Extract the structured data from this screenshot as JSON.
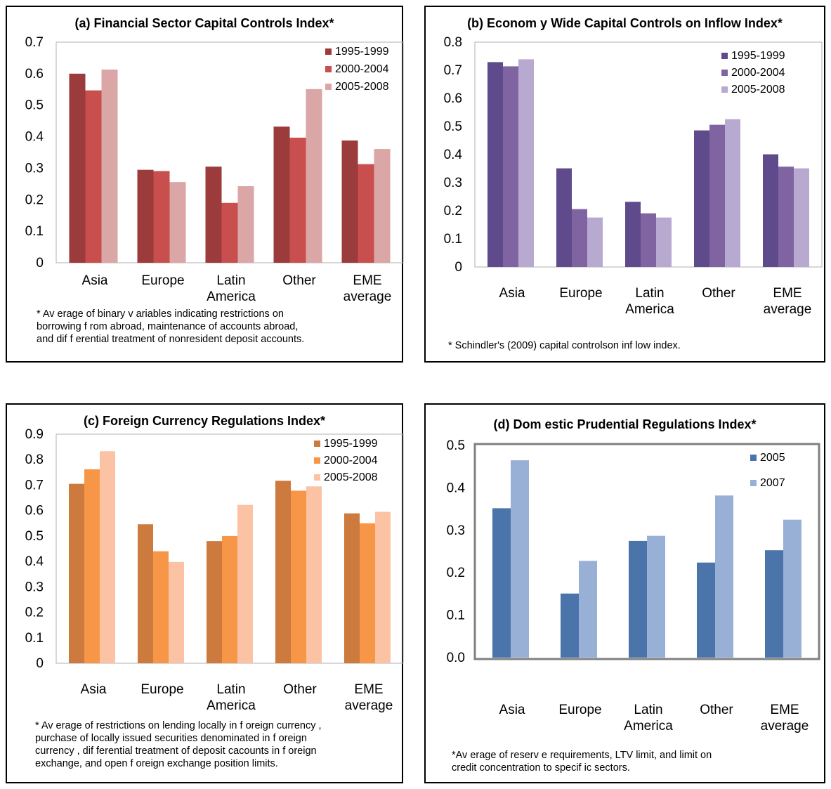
{
  "chart_data": [
    {
      "id": "a",
      "type": "bar",
      "title": "(a) Financial Sector Capital Controls Index*",
      "categories": [
        [
          "Asia"
        ],
        [
          "Europe"
        ],
        [
          "Latin",
          "America"
        ],
        [
          "Other"
        ],
        [
          "EME",
          "average"
        ]
      ],
      "ylim": [
        0,
        0.7
      ],
      "yticks": [
        "0",
        "0.1",
        "0.2",
        "0.3",
        "0.4",
        "0.5",
        "0.6",
        "0.7"
      ],
      "legend_position": "top-right",
      "series": [
        {
          "name": "1995-1999",
          "color": "#9b3b3b",
          "values": [
            0.6,
            0.295,
            0.305,
            0.432,
            0.388
          ]
        },
        {
          "name": "2000-2004",
          "color": "#c94f4f",
          "values": [
            0.547,
            0.291,
            0.19,
            0.397,
            0.313
          ]
        },
        {
          "name": "2005-2008",
          "color": "#dba6a6",
          "values": [
            0.613,
            0.256,
            0.243,
            0.551,
            0.361
          ]
        }
      ],
      "note": [
        "* Av erage of binary  v ariables indicating restrictions on",
        "borrowing f rom abroad, maintenance of accounts abroad,",
        "and dif f erential treatment of nonresident deposit accounts."
      ]
    },
    {
      "id": "b",
      "type": "bar",
      "title": "(b) Econom y Wide Capital Controls on Inflow Index*",
      "categories": [
        [
          "Asia"
        ],
        [
          "Europe"
        ],
        [
          "Latin",
          "America"
        ],
        [
          "Other"
        ],
        [
          "EME",
          "average"
        ]
      ],
      "ylim": [
        0,
        0.8
      ],
      "yticks": [
        "0",
        "0.1",
        "0.2",
        "0.3",
        "0.4",
        "0.5",
        "0.6",
        "0.7",
        "0.8"
      ],
      "legend_position": "top-right",
      "series": [
        {
          "name": "1995-1999",
          "color": "#5f4b8b",
          "values": [
            0.729,
            0.351,
            0.232,
            0.486,
            0.401
          ]
        },
        {
          "name": "2000-2004",
          "color": "#8064a2",
          "values": [
            0.714,
            0.206,
            0.191,
            0.506,
            0.357
          ]
        },
        {
          "name": "2005-2008",
          "color": "#b7a9cf",
          "values": [
            0.739,
            0.176,
            0.176,
            0.526,
            0.351
          ]
        }
      ],
      "note": [
        "* Schindler's (2009)  capital controlson inf low index."
      ]
    },
    {
      "id": "c",
      "type": "bar",
      "title": "(c) Foreign Currency Regulations Index*",
      "categories": [
        [
          "Asia"
        ],
        [
          "Europe"
        ],
        [
          "Latin",
          "America"
        ],
        [
          "Other"
        ],
        [
          "EME",
          "average"
        ]
      ],
      "ylim": [
        0,
        0.9
      ],
      "yticks": [
        "0",
        "0.1",
        "0.2",
        "0.3",
        "0.4",
        "0.5",
        "0.6",
        "0.7",
        "0.8",
        "0.9"
      ],
      "legend_position": "top-right",
      "series": [
        {
          "name": "1995-1999",
          "color": "#cc7a3e",
          "values": [
            0.705,
            0.546,
            0.48,
            0.717,
            0.589
          ]
        },
        {
          "name": "2000-2004",
          "color": "#f79646",
          "values": [
            0.762,
            0.44,
            0.5,
            0.678,
            0.55
          ]
        },
        {
          "name": "2005-2008",
          "color": "#fbc3a3",
          "values": [
            0.833,
            0.398,
            0.622,
            0.695,
            0.595
          ]
        }
      ],
      "note": [
        "* Av erage of restrictions on lending locally in f oreign currency ,",
        "purchase of locally issued securities denominated in f oreign",
        "currency , dif ferential treatment of deposit cacounts in f oreign",
        "exchange, and open f oreign exchange position limits."
      ]
    },
    {
      "id": "d",
      "type": "bar",
      "title": "(d) Dom estic Prudential Regulations Index*",
      "categories": [
        [
          "Asia"
        ],
        [
          "Europe"
        ],
        [
          "Latin",
          "America"
        ],
        [
          "Other"
        ],
        [
          "EME",
          "average"
        ]
      ],
      "ylim": [
        0,
        0.5
      ],
      "yticks": [
        "0.0",
        "0.1",
        "0.2",
        "0.3",
        "0.4",
        "0.5"
      ],
      "legend_position": "top-right",
      "series": [
        {
          "name": "2005",
          "color": "#4a74aa",
          "values": [
            0.352,
            0.151,
            0.275,
            0.224,
            0.253
          ]
        },
        {
          "name": "2007",
          "color": "#98afd6",
          "values": [
            0.465,
            0.228,
            0.287,
            0.382,
            0.325
          ]
        }
      ],
      "note": [
        "*Av erage of reserv e requirements, LTV limit, and limit on",
        "credit concentration to specif ic sectors."
      ]
    }
  ]
}
